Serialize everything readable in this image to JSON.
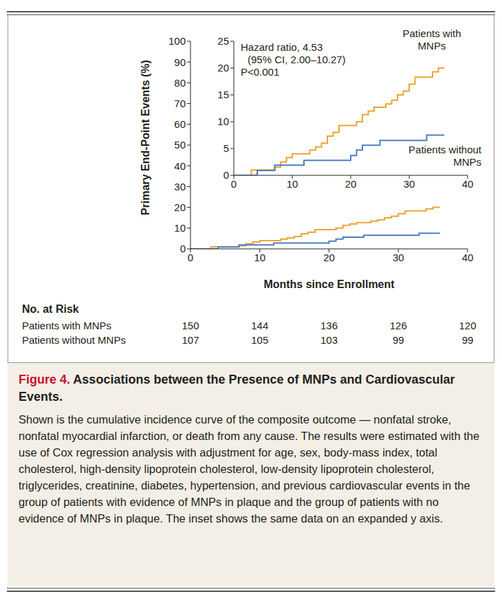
{
  "chart_data": [
    {
      "type": "line",
      "y_label": "Primary End-Point Events (%)",
      "x_label": "Months since Enrollment",
      "xlim": [
        0,
        40
      ],
      "xticks": [
        0,
        10,
        20,
        30,
        40
      ],
      "ylim": [
        0,
        100
      ],
      "yticks": [
        0,
        10,
        20,
        30,
        40,
        50,
        60,
        70,
        80,
        90,
        100
      ],
      "line_style": "step",
      "series": [
        {
          "color": "#eea232",
          "x": [
            0,
            3,
            7,
            8,
            9,
            10,
            13,
            14,
            15,
            16,
            17,
            18,
            21,
            22,
            23,
            24,
            26,
            27,
            28,
            29,
            30,
            31,
            34,
            35,
            36
          ],
          "values": [
            0,
            1,
            1.5,
            2.5,
            3.3,
            4,
            4.7,
            5.3,
            6,
            7.3,
            8,
            9.3,
            10,
            11.3,
            12,
            12.7,
            13.3,
            14,
            15,
            15.7,
            17,
            18.3,
            19.3,
            20,
            20
          ]
        },
        {
          "color": "#4a7fc1",
          "x": [
            0,
            4,
            7,
            12,
            20,
            21,
            22,
            25,
            33,
            36
          ],
          "values": [
            0,
            0.9,
            1.9,
            2.8,
            3.7,
            4.7,
            5.6,
            6.5,
            7.5,
            7.5
          ]
        }
      ]
    },
    {
      "type": "line",
      "annotations": [
        "Hazard ratio, 4.53",
        "(95% CI, 2.00–10.27)",
        "P<0.001"
      ],
      "xlim": [
        0,
        40
      ],
      "xticks": [
        0,
        10,
        20,
        30,
        40
      ],
      "ylim": [
        0,
        25
      ],
      "yticks": [
        0,
        5,
        10,
        15,
        20,
        25
      ],
      "line_style": "step",
      "series": [
        {
          "name": "Patients with MNPs",
          "color": "#eea232",
          "x": [
            0,
            3,
            7,
            8,
            9,
            10,
            13,
            14,
            15,
            16,
            17,
            18,
            21,
            22,
            23,
            24,
            26,
            27,
            28,
            29,
            30,
            31,
            34,
            35,
            36
          ],
          "values": [
            0,
            1,
            1.5,
            2.5,
            3.3,
            4,
            4.7,
            5.3,
            6,
            7.3,
            8,
            9.3,
            10,
            11.3,
            12,
            12.7,
            13.3,
            14,
            15,
            15.7,
            17,
            18.3,
            19.3,
            20,
            20
          ]
        },
        {
          "name": "Patients without MNPs",
          "color": "#4a7fc1",
          "x": [
            0,
            4,
            7,
            12,
            20,
            21,
            22,
            25,
            33,
            36
          ],
          "values": [
            0,
            0.9,
            1.9,
            2.8,
            3.7,
            4.7,
            5.6,
            6.5,
            7.5,
            7.5
          ]
        }
      ]
    }
  ],
  "risk_table": {
    "title": "No. at Risk",
    "rows": [
      {
        "label": "Patients with MNPs",
        "values": [
          150,
          144,
          136,
          126,
          120
        ]
      },
      {
        "label": "Patients without MNPs",
        "values": [
          107,
          105,
          103,
          99,
          99
        ]
      }
    ]
  },
  "caption": {
    "label": "Figure 4.",
    "title": "Associations between the Presence of MNPs and Cardiovascular Events.",
    "text": "Shown is the cumulative incidence curve of the composite outcome — nonfatal stroke, nonfatal myocardial infarction, or death from any cause. The results were estimated with the use of Cox regression analysis with adjustment for age, sex, body-mass index, total cholesterol, high-density lipoprotein cholesterol, low-density lipoprotein cholesterol, triglycerides, creatinine, diabetes, hypertension, and previous cardiovascular events in the group of patients with evidence of MNPs in plaque and the group of patients with no evidence of MNPs in plaque. The inset shows the same data on an expanded y axis."
  }
}
